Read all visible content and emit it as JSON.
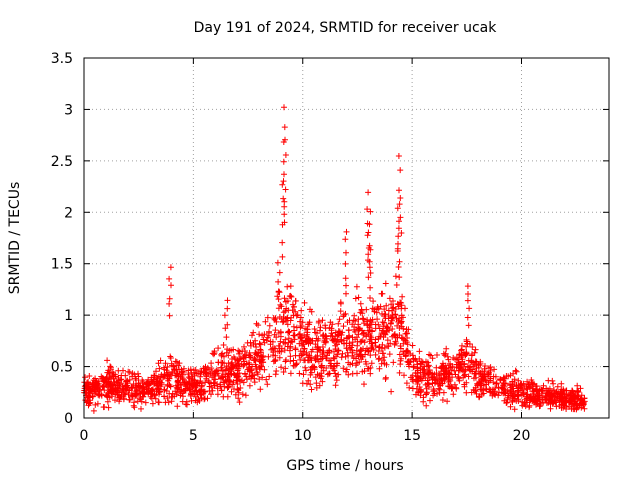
{
  "chart_data": {
    "type": "scatter",
    "title": "Day 191 of 2024, SRMTID for receiver ucak",
    "xlabel": "GPS time / hours",
    "ylabel": "SRMTID / TECUs",
    "xlim": [
      0,
      24
    ],
    "ylim": [
      0,
      3.5
    ],
    "xticks": [
      0,
      5,
      10,
      15,
      20
    ],
    "yticks": [
      0,
      0.5,
      1,
      1.5,
      2,
      2.5,
      3,
      3.5
    ],
    "xtick_labels": [
      "0",
      "5",
      "10",
      "15",
      "20"
    ],
    "ytick_labels": [
      "0",
      "0.5",
      "1",
      "1.5",
      "2",
      "2.5",
      "3",
      "3.5"
    ],
    "grid": true,
    "marker": "+",
    "color": "#ff0000",
    "series": [
      {
        "name": "SRMTID",
        "x_range": [
          0,
          22.9
        ],
        "profile_hours": [
          0,
          1,
          2,
          3,
          4,
          5,
          6,
          7,
          8,
          8.8,
          9.1,
          9.6,
          10.5,
          11.5,
          12.2,
          13,
          13.8,
          14.3,
          14.7,
          15.2,
          16,
          17,
          17.5,
          18.2,
          19,
          20,
          21,
          22,
          22.9
        ],
        "profile_median": [
          0.25,
          0.32,
          0.3,
          0.27,
          0.38,
          0.3,
          0.42,
          0.45,
          0.58,
          0.78,
          0.95,
          0.8,
          0.62,
          0.65,
          0.82,
          0.72,
          0.85,
          0.9,
          0.75,
          0.42,
          0.4,
          0.45,
          0.55,
          0.4,
          0.3,
          0.25,
          0.22,
          0.2,
          0.16
        ],
        "peaks": [
          {
            "x": 9.12,
            "y": 3.05
          },
          {
            "x": 9.2,
            "y": 2.75
          },
          {
            "x": 9.1,
            "y": 2.3
          },
          {
            "x": 14.45,
            "y": 2.57
          },
          {
            "x": 14.4,
            "y": 2.18
          },
          {
            "x": 13.0,
            "y": 2.2
          },
          {
            "x": 13.05,
            "y": 2.05
          },
          {
            "x": 12.0,
            "y": 1.85
          },
          {
            "x": 13.05,
            "y": 1.7
          },
          {
            "x": 14.35,
            "y": 1.85
          },
          {
            "x": 3.95,
            "y": 1.47
          },
          {
            "x": 8.9,
            "y": 1.55
          },
          {
            "x": 17.55,
            "y": 1.3
          },
          {
            "x": 6.5,
            "y": 1.15
          }
        ]
      }
    ]
  }
}
